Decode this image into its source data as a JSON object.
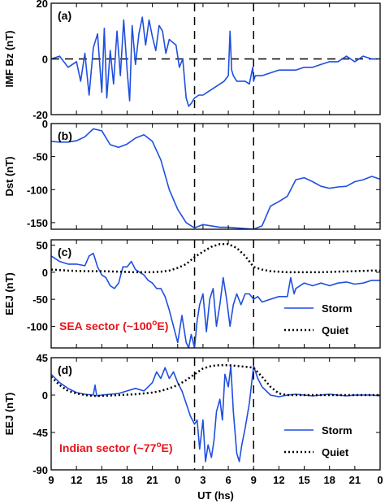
{
  "chart_data": [
    {
      "type": "line",
      "panel_label": "(a)",
      "ylabel": "IMF Bz (nT)",
      "ylim": [
        -20,
        20
      ],
      "yticks": [
        20,
        0,
        -20
      ],
      "xlim": [
        0,
        39
      ],
      "zero_line_dashed": true,
      "vertical_dashed_x": [
        17,
        24
      ],
      "series": [
        {
          "color": "#1f4fe0",
          "x": [
            0,
            1,
            2,
            3,
            3.5,
            4,
            4.5,
            5,
            5.5,
            6,
            6.3,
            6.6,
            7,
            7.4,
            7.8,
            8.2,
            8.6,
            9,
            9.3,
            9.6,
            10,
            10.4,
            10.8,
            11.2,
            11.6,
            12,
            12.4,
            12.8,
            13.2,
            13.6,
            14,
            14.4,
            14.8,
            15.2,
            15.6,
            16,
            16.3,
            16.6,
            17,
            17.5,
            18,
            18.5,
            19,
            19.5,
            20,
            20.5,
            21,
            21.2,
            21.4,
            21.6,
            22,
            22.5,
            23,
            23.5,
            23.9,
            24,
            24.2,
            24.6,
            25,
            26,
            27,
            28,
            29,
            30,
            31,
            32,
            33,
            34,
            35,
            36,
            37,
            38,
            39
          ],
          "y": [
            0,
            1,
            -3,
            -1,
            -8,
            2,
            -13,
            4,
            9,
            -12,
            11,
            -14,
            3,
            -9,
            10,
            -6,
            14,
            -4,
            -15,
            12,
            -2,
            9,
            15,
            5,
            14,
            8,
            3,
            12,
            10,
            2,
            7,
            6,
            5,
            -3,
            0,
            -14,
            -17,
            -16,
            -14,
            -13,
            -13,
            -12,
            -11,
            -10,
            -9,
            -8,
            -6,
            10,
            -4,
            -6,
            -8,
            -8,
            -8,
            -9,
            -3,
            -8,
            -6,
            -6,
            -6,
            -5,
            -4,
            -4,
            -4,
            -3,
            -3,
            -2,
            -1,
            -1,
            1,
            -1,
            1,
            0,
            0
          ]
        }
      ]
    },
    {
      "type": "line",
      "panel_label": "(b)",
      "ylabel": "Dst (nT)",
      "ylim": [
        -160,
        0
      ],
      "yticks": [
        0,
        -50,
        -100,
        -150
      ],
      "xlim": [
        0,
        39
      ],
      "vertical_dashed_x": [
        17,
        24
      ],
      "series": [
        {
          "color": "#1f4fe0",
          "x": [
            0,
            1,
            2,
            3,
            4,
            5,
            6,
            7,
            8,
            9,
            10,
            11,
            12,
            13,
            14,
            15,
            16,
            17,
            18,
            19,
            20,
            21,
            22,
            23,
            24,
            25,
            26,
            27,
            28,
            29,
            30,
            31,
            32,
            33,
            34,
            35,
            36,
            37,
            38,
            39
          ],
          "y": [
            -27,
            -28,
            -28,
            -26,
            -20,
            -8,
            -11,
            -32,
            -36,
            -31,
            -22,
            -17,
            -27,
            -55,
            -100,
            -130,
            -150,
            -158,
            -153,
            -155,
            -157,
            -157,
            -158,
            -159,
            -160,
            -155,
            -125,
            -118,
            -110,
            -85,
            -82,
            -88,
            -95,
            -98,
            -96,
            -95,
            -88,
            -85,
            -80,
            -84
          ]
        }
      ]
    },
    {
      "type": "line",
      "panel_label": "(c)",
      "ylabel": "EEJ (nT)",
      "ylim": [
        -140,
        60
      ],
      "yticks": [
        50,
        0,
        -50,
        -100
      ],
      "xlim": [
        0,
        39
      ],
      "vertical_dashed_x": [
        17,
        24
      ],
      "sector_text": "SEA sector (~100",
      "sector_sup": "o",
      "sector_suffix": "E)",
      "legend": [
        "Storm",
        "Quiet"
      ],
      "legend_position": "bottom-right",
      "series": [
        {
          "name": "Storm",
          "color": "#1f4fe0",
          "style": "solid",
          "x": [
            0,
            1,
            2,
            3,
            4,
            4.5,
            5,
            5.5,
            6,
            6.5,
            7,
            7.5,
            8,
            8.5,
            9,
            9.5,
            10,
            10.5,
            11,
            11.5,
            12,
            12.5,
            13,
            13.5,
            14,
            14.5,
            15,
            15.5,
            16,
            16.3,
            16.6,
            17,
            17.3,
            17.6,
            18,
            18.4,
            18.8,
            19.2,
            19.6,
            20,
            20.4,
            20.8,
            21.2,
            21.6,
            22,
            22.5,
            23,
            23.5,
            24,
            24.5,
            25,
            26,
            27,
            28,
            28.4,
            28.8,
            29,
            30,
            31,
            32,
            33,
            34,
            35,
            36,
            37,
            38,
            39
          ],
          "y": [
            30,
            20,
            15,
            15,
            12,
            30,
            35,
            10,
            -5,
            -10,
            -25,
            -30,
            -20,
            10,
            10,
            20,
            5,
            0,
            -5,
            -15,
            -20,
            -30,
            -30,
            -45,
            -70,
            -100,
            -130,
            -80,
            -130,
            -140,
            -115,
            -140,
            -90,
            -60,
            -40,
            -110,
            -50,
            -30,
            -100,
            -60,
            -10,
            -50,
            -100,
            -60,
            -40,
            -60,
            -40,
            -40,
            -50,
            -45,
            -55,
            -50,
            -45,
            -45,
            -10,
            -40,
            -30,
            -20,
            -25,
            -20,
            -25,
            -20,
            -18,
            -22,
            -20,
            -15,
            -15
          ]
        },
        {
          "name": "Quiet",
          "color": "#000000",
          "style": "dotted",
          "x": [
            0,
            2,
            4,
            6,
            8,
            10,
            12,
            13,
            14,
            15,
            16,
            17,
            18,
            19,
            20,
            21,
            22,
            23,
            24,
            25,
            26,
            28,
            30,
            32,
            34,
            36,
            38,
            39
          ],
          "y": [
            5,
            3,
            2,
            2,
            1,
            0,
            0,
            1,
            3,
            8,
            15,
            28,
            38,
            47,
            52,
            52,
            45,
            30,
            10,
            5,
            2,
            0,
            0,
            0,
            1,
            2,
            3,
            3
          ]
        }
      ]
    },
    {
      "type": "line",
      "panel_label": "(d)",
      "ylabel": "EEJ (nT)",
      "ylim": [
        -90,
        45
      ],
      "yticks": [
        45,
        0,
        -45,
        -90
      ],
      "xlim": [
        0,
        39
      ],
      "vertical_dashed_x": [
        17,
        24
      ],
      "sector_text": "Indian sector (~77",
      "sector_sup": "o",
      "sector_suffix": "E)",
      "legend": [
        "Storm",
        "Quiet"
      ],
      "legend_position": "bottom-right",
      "xlabel": "UT (hs)",
      "xticks": [
        {
          "x": 0,
          "label": "9"
        },
        {
          "x": 3,
          "label": "12"
        },
        {
          "x": 6,
          "label": "15"
        },
        {
          "x": 9,
          "label": "18"
        },
        {
          "x": 12,
          "label": "21"
        },
        {
          "x": 15,
          "label": "0"
        },
        {
          "x": 18,
          "label": "3"
        },
        {
          "x": 21,
          "label": "6"
        },
        {
          "x": 24,
          "label": "9"
        },
        {
          "x": 27,
          "label": "12"
        },
        {
          "x": 30,
          "label": "15"
        },
        {
          "x": 33,
          "label": "18"
        },
        {
          "x": 36,
          "label": "21"
        },
        {
          "x": 39,
          "label": "0"
        }
      ],
      "series": [
        {
          "name": "Storm",
          "color": "#1f4fe0",
          "style": "solid",
          "x": [
            0,
            1,
            2,
            3,
            4,
            5,
            5.2,
            5.4,
            6,
            7,
            8,
            9,
            10,
            11,
            12,
            12.5,
            13,
            13.5,
            14,
            14.5,
            15,
            15.5,
            16,
            16.5,
            17,
            17.3,
            17.6,
            18,
            18.3,
            18.6,
            19,
            19.3,
            19.6,
            20,
            20.3,
            20.6,
            21,
            21.3,
            21.6,
            22,
            22.3,
            22.6,
            23,
            23.5,
            24,
            24.5,
            25,
            26,
            27,
            28,
            29,
            30,
            31,
            32,
            33,
            34,
            35,
            36,
            37,
            38,
            39
          ],
          "y": [
            25,
            15,
            8,
            3,
            1,
            0,
            12,
            -1,
            0,
            1,
            2,
            5,
            8,
            5,
            15,
            28,
            20,
            33,
            20,
            28,
            15,
            5,
            -10,
            -25,
            -35,
            -30,
            -65,
            -30,
            -80,
            -60,
            -75,
            -55,
            -20,
            -5,
            -30,
            25,
            10,
            35,
            -20,
            -70,
            -80,
            -60,
            -40,
            -10,
            35,
            20,
            10,
            0,
            -2,
            0,
            1,
            0,
            -1,
            0,
            1,
            0,
            -1,
            0,
            0,
            0,
            -1
          ]
        },
        {
          "name": "Quiet",
          "color": "#000000",
          "style": "dotted",
          "x": [
            0,
            1,
            2,
            3,
            4,
            5,
            6,
            8,
            10,
            12,
            13,
            14,
            15,
            16,
            17,
            18,
            19,
            20,
            21,
            22,
            23,
            24,
            25,
            26,
            27,
            28,
            30,
            32,
            34,
            36,
            38,
            39
          ],
          "y": [
            22,
            12,
            5,
            2,
            0,
            -1,
            -1,
            0,
            1,
            3,
            5,
            8,
            12,
            18,
            25,
            32,
            35,
            36,
            36,
            35,
            34,
            33,
            22,
            10,
            2,
            0,
            0,
            0,
            0,
            0,
            0,
            0
          ]
        }
      ]
    }
  ]
}
